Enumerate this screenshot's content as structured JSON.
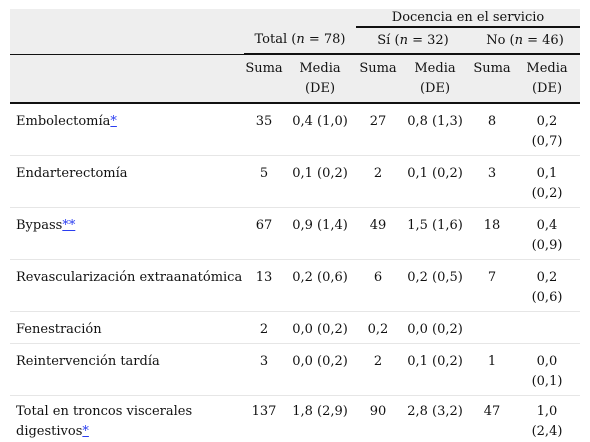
{
  "header": {
    "group_title": "Docencia en el servicio",
    "total_prefix": "Total (",
    "total_n": "n",
    "total_suffix": " = 78)",
    "si_prefix": "Sí (",
    "si_n": "n",
    "si_suffix": " = 32)",
    "no_prefix": "No (",
    "no_n": "n",
    "no_suffix": " = 46)",
    "suma": "Suma",
    "media": "Media",
    "de": "(DE)"
  },
  "rows": [
    {
      "label": "Embolectomía",
      "footnote": "*",
      "total_suma": "35",
      "total_media": "0,4 (1,0)",
      "si_suma": "27",
      "si_media": "0,8 (1,3)",
      "no_suma": "8",
      "no_media_a": "0,2",
      "no_media_b": "(0,7)"
    },
    {
      "label": "Endarterectomía",
      "footnote": "",
      "total_suma": "5",
      "total_media": "0,1 (0,2)",
      "si_suma": "2",
      "si_media": "0,1 (0,2)",
      "no_suma": "3",
      "no_media_a": "0,1",
      "no_media_b": "(0,2)"
    },
    {
      "label": "Bypass",
      "footnote": "**",
      "total_suma": "67",
      "total_media": "0,9 (1,4)",
      "si_suma": "49",
      "si_media": "1,5 (1,6)",
      "no_suma": "18",
      "no_media_a": "0,4",
      "no_media_b": "(0,9)"
    },
    {
      "label": "Revascularización extraanatómica",
      "footnote": "",
      "total_suma": "13",
      "total_media": "0,2 (0,6)",
      "si_suma": "6",
      "si_media": "0,2 (0,5)",
      "no_suma": "7",
      "no_media_a": "0,2",
      "no_media_b": "(0,6)"
    },
    {
      "label": "Fenestración",
      "footnote": "",
      "total_suma": "2",
      "total_media": "0,0 (0,2)",
      "si_suma": "0,2",
      "si_media": "0,0 (0,2)",
      "no_suma": "",
      "no_media_a": "",
      "no_media_b": ""
    },
    {
      "label": "Reintervención tardía",
      "footnote": "",
      "total_suma": "3",
      "total_media": "0,0 (0,2)",
      "si_suma": "2",
      "si_media": "0,1 (0,2)",
      "no_suma": "1",
      "no_media_a": "0,0",
      "no_media_b": "(0,1)"
    },
    {
      "label_a": "Total en troncos viscerales",
      "label_b": "digestivos",
      "footnote": "*",
      "total_suma": "137",
      "total_media": "1,8 (2,9)",
      "si_suma": "90",
      "si_media": "2,8 (3,2)",
      "no_suma": "47",
      "no_media_a": "1,0",
      "no_media_b": "(2,4)"
    }
  ],
  "colors": {
    "header_bg": "#eeeeee",
    "link": "#2a3df0",
    "text": "#111111"
  }
}
